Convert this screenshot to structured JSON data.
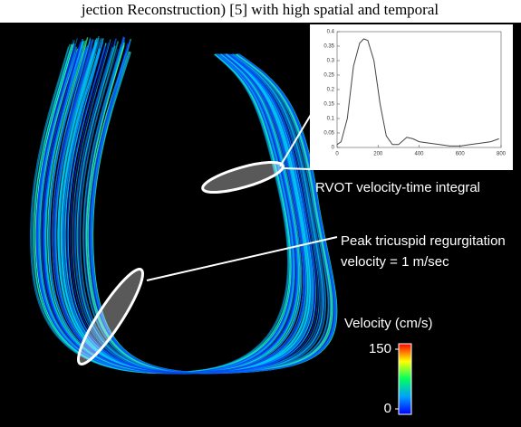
{
  "header_text": "jection Reconstruction) [5] with high spatial and temporal",
  "chart_data": {
    "type": "line",
    "x": [
      0,
      20,
      50,
      80,
      110,
      130,
      150,
      180,
      210,
      240,
      270,
      300,
      340,
      370,
      400,
      450,
      500,
      550,
      600,
      650,
      700,
      750,
      790
    ],
    "values": [
      0.01,
      0.02,
      0.1,
      0.28,
      0.36,
      0.375,
      0.37,
      0.3,
      0.15,
      0.04,
      0.01,
      0.01,
      0.035,
      0.03,
      0.02,
      0.015,
      0.01,
      0.005,
      0.005,
      0.01,
      0.015,
      0.02,
      0.03
    ],
    "color": "#444444",
    "xlim": [
      0,
      800
    ],
    "xticks": [
      0,
      200,
      400,
      600,
      800
    ],
    "ylim": [
      0,
      0.4
    ],
    "yticks": [
      0,
      0.05,
      0.1,
      0.15,
      0.2,
      0.25,
      0.3,
      0.35,
      0.4
    ]
  },
  "annotations": {
    "rvot": "RVOT velocity-time integral",
    "tr_line1": "Peak tricuspid regurgitation",
    "tr_line2": "velocity = 1 m/sec"
  },
  "colorbar": {
    "title": "Velocity (cm/s)",
    "ticks": [
      0,
      150
    ]
  }
}
